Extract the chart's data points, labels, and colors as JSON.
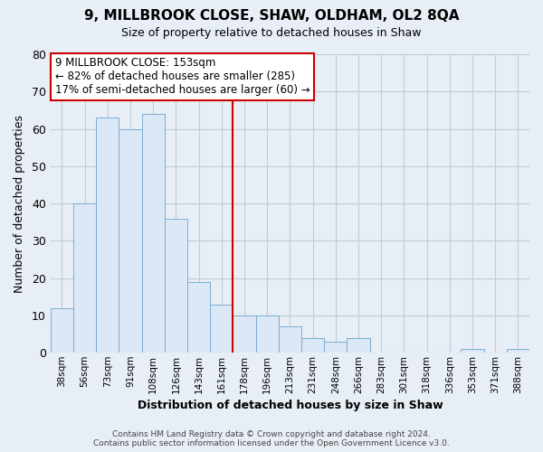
{
  "title": "9, MILLBROOK CLOSE, SHAW, OLDHAM, OL2 8QA",
  "subtitle": "Size of property relative to detached houses in Shaw",
  "xlabel": "Distribution of detached houses by size in Shaw",
  "ylabel": "Number of detached properties",
  "categories": [
    "38sqm",
    "56sqm",
    "73sqm",
    "91sqm",
    "108sqm",
    "126sqm",
    "143sqm",
    "161sqm",
    "178sqm",
    "196sqm",
    "213sqm",
    "231sqm",
    "248sqm",
    "266sqm",
    "283sqm",
    "301sqm",
    "318sqm",
    "336sqm",
    "353sqm",
    "371sqm",
    "388sqm"
  ],
  "values": [
    12,
    40,
    63,
    60,
    64,
    36,
    19,
    13,
    10,
    10,
    7,
    4,
    3,
    4,
    0,
    0,
    0,
    0,
    1,
    0,
    1
  ],
  "bar_color": "#dce8f5",
  "bar_edge_color": "#7aadd4",
  "ylim": [
    0,
    80
  ],
  "yticks": [
    0,
    10,
    20,
    30,
    40,
    50,
    60,
    70,
    80
  ],
  "annotation_title": "9 MILLBROOK CLOSE: 153sqm",
  "annotation_line1": "← 82% of detached houses are smaller (285)",
  "annotation_line2": "17% of semi-detached houses are larger (60) →",
  "annotation_box_color": "#ffffff",
  "annotation_box_edge": "#cc0000",
  "vline_color": "#cc0000",
  "vline_x": 7.5,
  "footer_line1": "Contains HM Land Registry data © Crown copyright and database right 2024.",
  "footer_line2": "Contains public sector information licensed under the Open Government Licence v3.0.",
  "background_color": "#e8eef5",
  "plot_bg_color": "#e8eef5",
  "grid_color": "#c0ccd8",
  "title_fontsize": 11,
  "subtitle_fontsize": 9,
  "xlabel_fontsize": 9,
  "ylabel_fontsize": 9
}
